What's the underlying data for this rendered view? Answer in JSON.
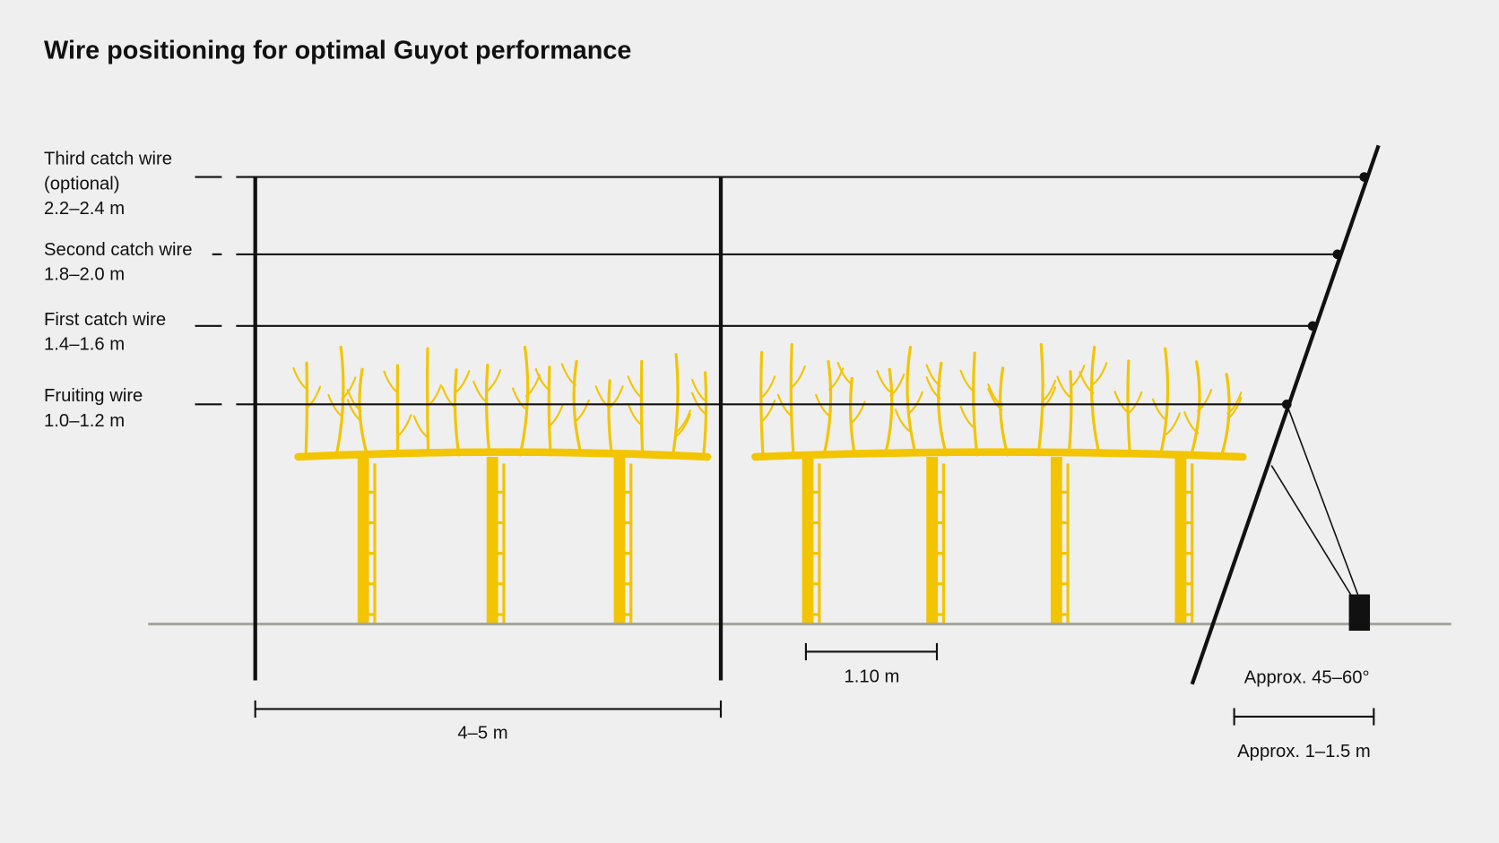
{
  "title": "Wire positioning for optimal Guyot performance",
  "wires": [
    {
      "label": [
        "Third catch wire",
        "(optional)"
      ],
      "height": "2.2–2.4 m"
    },
    {
      "label": [
        "Second catch wire"
      ],
      "height": "1.8–2.0 m"
    },
    {
      "label": [
        "First catch wire"
      ],
      "height": "1.4–1.6 m"
    },
    {
      "label": [
        "Fruiting wire"
      ],
      "height": "1.0–1.2 m"
    }
  ],
  "dimensions": {
    "vine_spacing": "1.10 m",
    "post_spacing": "4–5 m",
    "anchor_angle": "Approx. 45–60°",
    "anchor_distance": "Approx. 1–1.5 m"
  }
}
